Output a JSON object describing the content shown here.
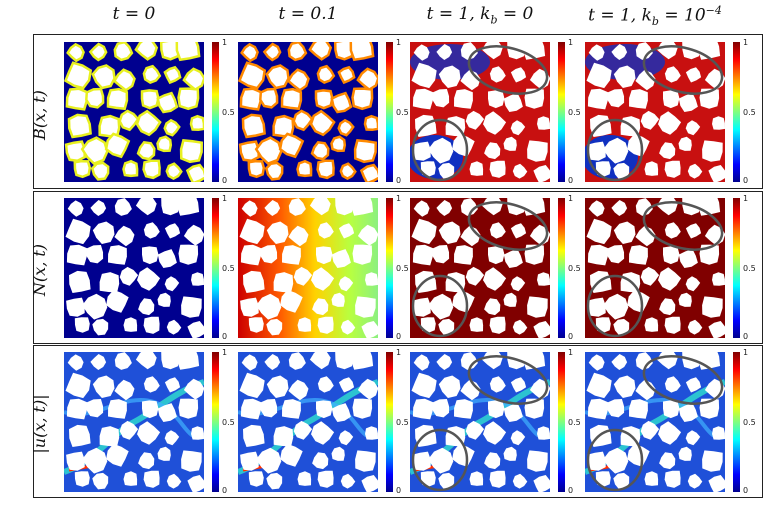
{
  "columns": [
    {
      "pre": "t = 0"
    },
    {
      "pre": "t = 0.1"
    },
    {
      "pre": "t = 1, k",
      "sub": "b",
      "post": " = 0"
    },
    {
      "pre": "t = 1, k",
      "sub": "b",
      "post": " = 10",
      "sup": "−4"
    }
  ],
  "rows": [
    {
      "label": "B(x, t)"
    },
    {
      "label": "N(x, t)"
    },
    {
      "label": "|u(x, t)|"
    }
  ],
  "colorbar": {
    "top": "1",
    "mid": "0.5",
    "bottom": "0"
  },
  "colors": {
    "low": "#00008f",
    "mid": "#7fff7f",
    "high": "#800000",
    "pore_white": "#ffffff",
    "ellipse": "#555555"
  }
}
